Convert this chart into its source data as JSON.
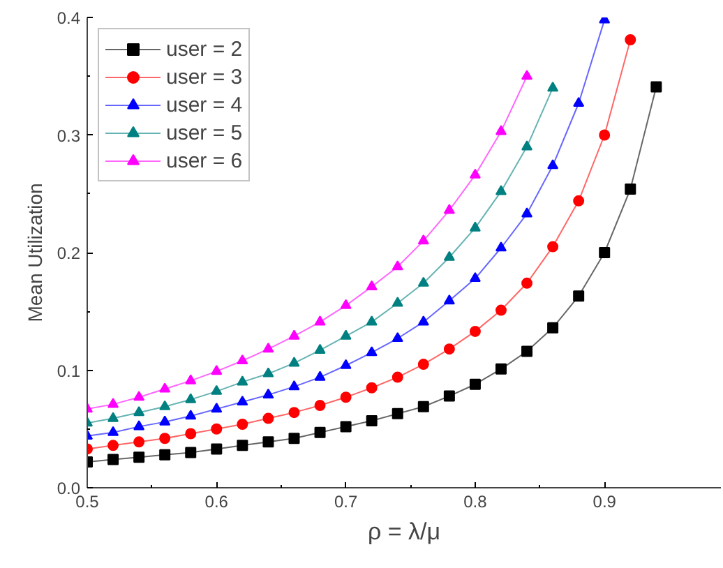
{
  "chart_data": {
    "type": "line",
    "xlabel": "ρ = λ/μ",
    "ylabel": "Mean Utilization",
    "xlim": [
      0.5,
      0.99
    ],
    "ylim": [
      0,
      0.4
    ],
    "xticks": [
      {
        "value": 0.5,
        "label": "0.5"
      },
      {
        "value": 0.6,
        "label": "0.6"
      },
      {
        "value": 0.7,
        "label": "0.7"
      },
      {
        "value": 0.8,
        "label": "0.8"
      },
      {
        "value": 0.9,
        "label": "0.9"
      }
    ],
    "yticks": [
      {
        "value": 0,
        "label": "0.0"
      },
      0.1,
      0.2,
      0.3,
      0.4
    ],
    "grid": false,
    "legend": "top left",
    "x": [
      0.5,
      0.52,
      0.54,
      0.56,
      0.58,
      0.6,
      0.62,
      0.64,
      0.66,
      0.68,
      0.7,
      0.72,
      0.74,
      0.76,
      0.78,
      0.8,
      0.82,
      0.84,
      0.86,
      0.88,
      0.9,
      0.92,
      0.94
    ],
    "series": [
      {
        "name": "user = 2",
        "color": "#000000",
        "marker": "square",
        "values": [
          0.022,
          0.024,
          0.026,
          0.028,
          0.03,
          0.033,
          0.036,
          0.039,
          0.042,
          0.047,
          0.052,
          0.057,
          0.063,
          0.069,
          0.078,
          0.088,
          0.101,
          0.116,
          0.136,
          0.163,
          0.2,
          0.254,
          0.341
        ]
      },
      {
        "name": "user = 3",
        "color": "#ff0000",
        "marker": "circle",
        "values": [
          0.033,
          0.036,
          0.039,
          0.042,
          0.046,
          0.05,
          0.054,
          0.059,
          0.064,
          0.07,
          0.077,
          0.085,
          0.094,
          0.105,
          0.118,
          0.133,
          0.151,
          0.174,
          0.205,
          0.244,
          0.3,
          0.381,
          null
        ]
      },
      {
        "name": "user = 4",
        "color": "#0000ff",
        "marker": "triangle",
        "values": [
          0.044,
          0.047,
          0.052,
          0.056,
          0.061,
          0.067,
          0.073,
          0.079,
          0.086,
          0.094,
          0.104,
          0.115,
          0.127,
          0.141,
          0.159,
          0.178,
          0.204,
          0.233,
          0.274,
          0.327,
          0.398,
          null,
          null
        ]
      },
      {
        "name": "user = 5",
        "color": "#008080",
        "marker": "triangle",
        "values": [
          0.055,
          0.059,
          0.064,
          0.069,
          0.075,
          0.082,
          0.09,
          0.097,
          0.106,
          0.117,
          0.129,
          0.141,
          0.157,
          0.174,
          0.196,
          0.221,
          0.252,
          0.29,
          0.34,
          null,
          null,
          null,
          null
        ]
      },
      {
        "name": "user = 6",
        "color": "#ff00ff",
        "marker": "triangle",
        "values": [
          0.067,
          0.071,
          0.077,
          0.084,
          0.091,
          0.099,
          0.108,
          0.118,
          0.129,
          0.141,
          0.155,
          0.171,
          0.188,
          0.21,
          0.236,
          0.266,
          0.303,
          0.35,
          null,
          null,
          null,
          null,
          null
        ]
      }
    ]
  }
}
